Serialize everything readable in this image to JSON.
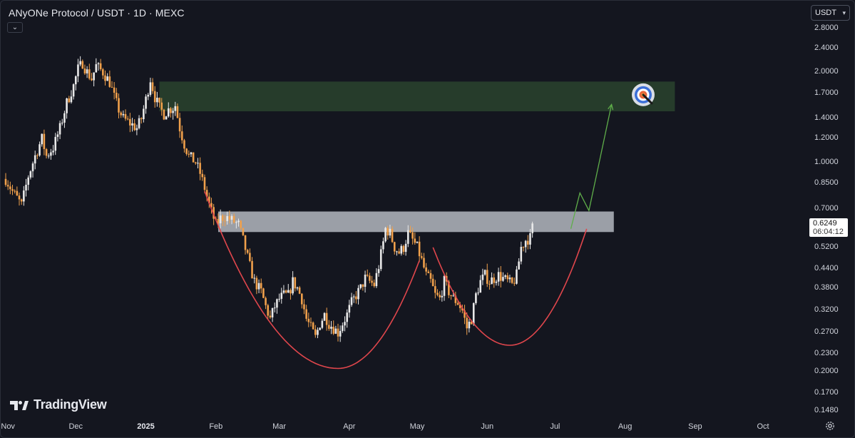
{
  "header": {
    "title": "ANyONe Protocol / USDT · 1D · MEXC"
  },
  "currency_selector": {
    "label": "USDT"
  },
  "last_price": {
    "value": "0.6249",
    "countdown": "06:04:12"
  },
  "branding": {
    "logo_text": "TradingView"
  },
  "icons": {
    "collapse": "chevron-down-icon",
    "settings": "gear-icon",
    "target": "target-icon",
    "logo": "tradingview-logo-icon"
  },
  "colors": {
    "background": "#14161f",
    "candle_up": "#e9e9e9",
    "candle_down": "#f0a04b",
    "target_zone": "#2c4a30",
    "resistance_zone": "#b9bdc6",
    "curve": "#e0464c",
    "projection_arrow": "#5fae4a"
  },
  "chart_data": {
    "type": "candlestick",
    "scale": "log",
    "y_ticks": [
      "2.8000",
      "2.4000",
      "2.0000",
      "1.7000",
      "1.4000",
      "1.2000",
      "1.0000",
      "0.8500",
      "0.7000",
      "0.5200",
      "0.4400",
      "0.3800",
      "0.3200",
      "0.2700",
      "0.2300",
      "0.2000",
      "0.1700",
      "0.1480"
    ],
    "x_ticks": [
      {
        "label": "Nov",
        "bold": false
      },
      {
        "label": "Dec",
        "bold": false
      },
      {
        "label": "2025",
        "bold": true
      },
      {
        "label": "Feb",
        "bold": false
      },
      {
        "label": "Mar",
        "bold": false
      },
      {
        "label": "Apr",
        "bold": false
      },
      {
        "label": "May",
        "bold": false
      },
      {
        "label": "Jun",
        "bold": false
      },
      {
        "label": "Jul",
        "bold": false
      },
      {
        "label": "Aug",
        "bold": false
      },
      {
        "label": "Sep",
        "bold": false
      },
      {
        "label": "Oct",
        "bold": false
      }
    ],
    "start_date": "2024-10-31",
    "close_path": [
      [
        0,
        0.88
      ],
      [
        3,
        0.8
      ],
      [
        5,
        0.76
      ],
      [
        7,
        0.72
      ],
      [
        10,
        0.9
      ],
      [
        13,
        1.05
      ],
      [
        16,
        1.2
      ],
      [
        18,
        1.05
      ],
      [
        21,
        1.12
      ],
      [
        24,
        1.3
      ],
      [
        27,
        1.58
      ],
      [
        30,
        1.8
      ],
      [
        32,
        2.05
      ],
      [
        34,
        2.15
      ],
      [
        36,
        2.0
      ],
      [
        38,
        1.9
      ],
      [
        40,
        2.1
      ],
      [
        43,
        2.0
      ],
      [
        46,
        1.85
      ],
      [
        48,
        1.65
      ],
      [
        50,
        1.5
      ],
      [
        52,
        1.4
      ],
      [
        55,
        1.35
      ],
      [
        58,
        1.3
      ],
      [
        60,
        1.4
      ],
      [
        62,
        1.62
      ],
      [
        64,
        1.9
      ],
      [
        66,
        1.65
      ],
      [
        68,
        1.52
      ],
      [
        70,
        1.45
      ],
      [
        72,
        1.5
      ],
      [
        74,
        1.52
      ],
      [
        75,
        1.55
      ],
      [
        77,
        1.3
      ],
      [
        79,
        1.15
      ],
      [
        81,
        1.05
      ],
      [
        84,
        1.0
      ],
      [
        86,
        0.92
      ],
      [
        88,
        0.82
      ],
      [
        90,
        0.72
      ],
      [
        93,
        0.62
      ],
      [
        95,
        0.65
      ],
      [
        97,
        0.66
      ],
      [
        100,
        0.64
      ],
      [
        103,
        0.62
      ],
      [
        105,
        0.55
      ],
      [
        108,
        0.45
      ],
      [
        110,
        0.4
      ],
      [
        113,
        0.37
      ],
      [
        115,
        0.33
      ],
      [
        117,
        0.3
      ],
      [
        119,
        0.33
      ],
      [
        121,
        0.35
      ],
      [
        123,
        0.36
      ],
      [
        125,
        0.36
      ],
      [
        127,
        0.4
      ],
      [
        129,
        0.38
      ],
      [
        131,
        0.35
      ],
      [
        133,
        0.3
      ],
      [
        135,
        0.28
      ],
      [
        137,
        0.26
      ],
      [
        139,
        0.29
      ],
      [
        141,
        0.31
      ],
      [
        143,
        0.29
      ],
      [
        145,
        0.28
      ],
      [
        147,
        0.27
      ],
      [
        149,
        0.29
      ],
      [
        151,
        0.31
      ],
      [
        153,
        0.34
      ],
      [
        155,
        0.36
      ],
      [
        157,
        0.38
      ],
      [
        159,
        0.41
      ],
      [
        161,
        0.4
      ],
      [
        163,
        0.39
      ],
      [
        165,
        0.45
      ],
      [
        167,
        0.54
      ],
      [
        168,
        0.6
      ],
      [
        170,
        0.58
      ],
      [
        172,
        0.52
      ],
      [
        174,
        0.5
      ],
      [
        176,
        0.52
      ],
      [
        178,
        0.58
      ],
      [
        180,
        0.55
      ],
      [
        182,
        0.52
      ],
      [
        184,
        0.47
      ],
      [
        186,
        0.42
      ],
      [
        188,
        0.4
      ],
      [
        190,
        0.36
      ],
      [
        192,
        0.35
      ],
      [
        194,
        0.4
      ],
      [
        196,
        0.37
      ],
      [
        198,
        0.35
      ],
      [
        200,
        0.34
      ],
      [
        202,
        0.32
      ],
      [
        204,
        0.28
      ],
      [
        206,
        0.3
      ],
      [
        208,
        0.36
      ],
      [
        210,
        0.4
      ],
      [
        212,
        0.42
      ],
      [
        214,
        0.4
      ],
      [
        216,
        0.41
      ],
      [
        218,
        0.42
      ],
      [
        220,
        0.41
      ],
      [
        222,
        0.4
      ],
      [
        224,
        0.39
      ],
      [
        226,
        0.42
      ],
      [
        228,
        0.52
      ],
      [
        230,
        0.55
      ],
      [
        232,
        0.56
      ],
      [
        233,
        0.6249
      ]
    ],
    "zones": [
      {
        "name": "target",
        "start_day": 68,
        "end_day": 296,
        "low": 1.48,
        "high": 1.86
      },
      {
        "name": "resistance",
        "start_day": 94,
        "end_day": 269,
        "low": 0.585,
        "high": 0.685
      }
    ],
    "cup_curves": [
      {
        "start_day": 88,
        "end_day": 183,
        "bottom_day": 147,
        "start_price": 0.8,
        "bottom_price": 0.205,
        "end_price": 0.47
      },
      {
        "start_day": 189,
        "end_day": 257,
        "bottom_day": 223,
        "start_price": 0.52,
        "bottom_price": 0.245,
        "end_price": 0.6
      }
    ],
    "projection_arrow": [
      [
        250,
        0.6
      ],
      [
        254,
        0.79
      ],
      [
        258,
        0.69
      ],
      [
        268,
        1.56
      ]
    ],
    "target_icon_day": 282,
    "target_icon_price": 1.68
  }
}
